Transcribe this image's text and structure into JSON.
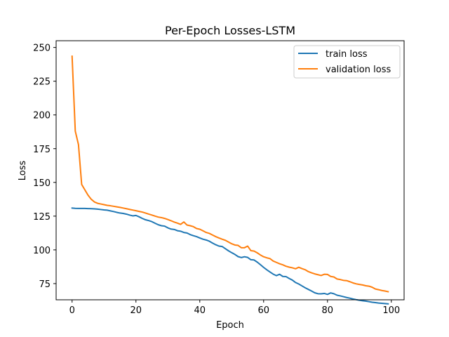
{
  "chart_data": {
    "type": "line",
    "title": "Per-Epoch Losses-LSTM",
    "xlabel": "Epoch",
    "ylabel": "Loss",
    "xlim": [
      -5,
      104
    ],
    "ylim": [
      63,
      255
    ],
    "xticks": [
      0,
      20,
      40,
      60,
      80,
      100
    ],
    "yticks": [
      75,
      100,
      125,
      150,
      175,
      200,
      225,
      250
    ],
    "grid": false,
    "legend_position": "top-right",
    "series": [
      {
        "name": "train loss",
        "color": "#1f77b4",
        "x": [
          0,
          1,
          2,
          3,
          4,
          5,
          6,
          7,
          8,
          9,
          10,
          11,
          12,
          13,
          14,
          15,
          16,
          17,
          18,
          19,
          20,
          21,
          22,
          23,
          24,
          25,
          26,
          27,
          28,
          29,
          30,
          31,
          32,
          33,
          34,
          35,
          36,
          37,
          38,
          39,
          40,
          41,
          42,
          43,
          44,
          45,
          46,
          47,
          48,
          49,
          50,
          51,
          52,
          53,
          54,
          55,
          56,
          57,
          58,
          59,
          60,
          61,
          62,
          63,
          64,
          65,
          66,
          67,
          68,
          69,
          70,
          71,
          72,
          73,
          74,
          75,
          76,
          77,
          78,
          79,
          80,
          81,
          82,
          83,
          84,
          85,
          86,
          87,
          88,
          89,
          90,
          91,
          92,
          93,
          94,
          95,
          96,
          97,
          98,
          99
        ],
        "values": [
          131.0,
          130.8,
          130.7,
          130.7,
          130.7,
          130.6,
          130.5,
          130.4,
          130.2,
          129.9,
          129.6,
          129.4,
          128.9,
          128.4,
          127.8,
          127.3,
          127.0,
          126.5,
          125.8,
          125.2,
          125.5,
          124.5,
          123.3,
          122.3,
          121.7,
          120.9,
          119.7,
          118.6,
          117.9,
          117.6,
          116.3,
          115.4,
          115.1,
          114.2,
          113.8,
          112.9,
          112.5,
          111.3,
          110.5,
          109.8,
          108.8,
          107.9,
          107.3,
          106.4,
          105.0,
          103.8,
          102.8,
          102.5,
          100.9,
          99.3,
          97.9,
          96.6,
          95.0,
          94.3,
          94.9,
          94.4,
          92.7,
          92.5,
          90.9,
          89.0,
          87.0,
          85.2,
          83.6,
          82.0,
          80.9,
          81.9,
          80.3,
          80.2,
          78.8,
          77.6,
          75.8,
          74.7,
          73.3,
          71.9,
          70.7,
          69.5,
          68.2,
          67.5,
          67.4,
          67.7,
          67.0,
          68.1,
          67.5,
          66.4,
          65.9,
          65.3,
          64.7,
          64.2,
          63.6,
          63.1,
          62.7,
          62.3,
          62.0,
          61.6,
          61.2,
          60.9,
          60.6,
          60.4,
          60.2,
          60.0
        ]
      },
      {
        "name": "validation loss",
        "color": "#ff7f0e",
        "x": [
          0,
          1,
          2,
          3,
          4,
          5,
          6,
          7,
          8,
          9,
          10,
          11,
          12,
          13,
          14,
          15,
          16,
          17,
          18,
          19,
          20,
          21,
          22,
          23,
          24,
          25,
          26,
          27,
          28,
          29,
          30,
          31,
          32,
          33,
          34,
          35,
          36,
          37,
          38,
          39,
          40,
          41,
          42,
          43,
          44,
          45,
          46,
          47,
          48,
          49,
          50,
          51,
          52,
          53,
          54,
          55,
          56,
          57,
          58,
          59,
          60,
          61,
          62,
          63,
          64,
          65,
          66,
          67,
          68,
          69,
          70,
          71,
          72,
          73,
          74,
          75,
          76,
          77,
          78,
          79,
          80,
          81,
          82,
          83,
          84,
          85,
          86,
          87,
          88,
          89,
          90,
          91,
          92,
          93,
          94,
          95,
          96,
          97,
          98,
          99
        ],
        "values": [
          243.5,
          188.0,
          178.0,
          148.5,
          144.5,
          140.5,
          137.5,
          135.5,
          134.5,
          134.0,
          133.5,
          133.0,
          132.7,
          132.3,
          131.9,
          131.5,
          131.0,
          130.5,
          130.0,
          129.5,
          129.0,
          128.5,
          128.0,
          127.3,
          126.5,
          125.8,
          125.0,
          124.3,
          123.9,
          123.3,
          122.5,
          121.6,
          120.6,
          119.8,
          118.9,
          120.7,
          118.4,
          117.9,
          117.2,
          115.8,
          115.3,
          114.1,
          112.9,
          112.2,
          111.0,
          109.8,
          108.8,
          107.9,
          107.1,
          105.8,
          104.5,
          103.6,
          103.3,
          101.6,
          101.6,
          102.8,
          99.4,
          99.1,
          97.8,
          96.2,
          94.9,
          94.1,
          93.5,
          91.7,
          90.7,
          89.7,
          88.9,
          87.9,
          87.2,
          86.7,
          86.0,
          87.1,
          86.1,
          85.3,
          83.9,
          83.0,
          82.2,
          81.6,
          81.0,
          81.9,
          81.8,
          80.3,
          79.9,
          78.4,
          78.0,
          77.4,
          77.2,
          76.4,
          75.5,
          74.8,
          74.4,
          74.0,
          73.4,
          73.1,
          72.3,
          71.0,
          70.5,
          69.9,
          69.5,
          69.0
        ]
      }
    ]
  }
}
